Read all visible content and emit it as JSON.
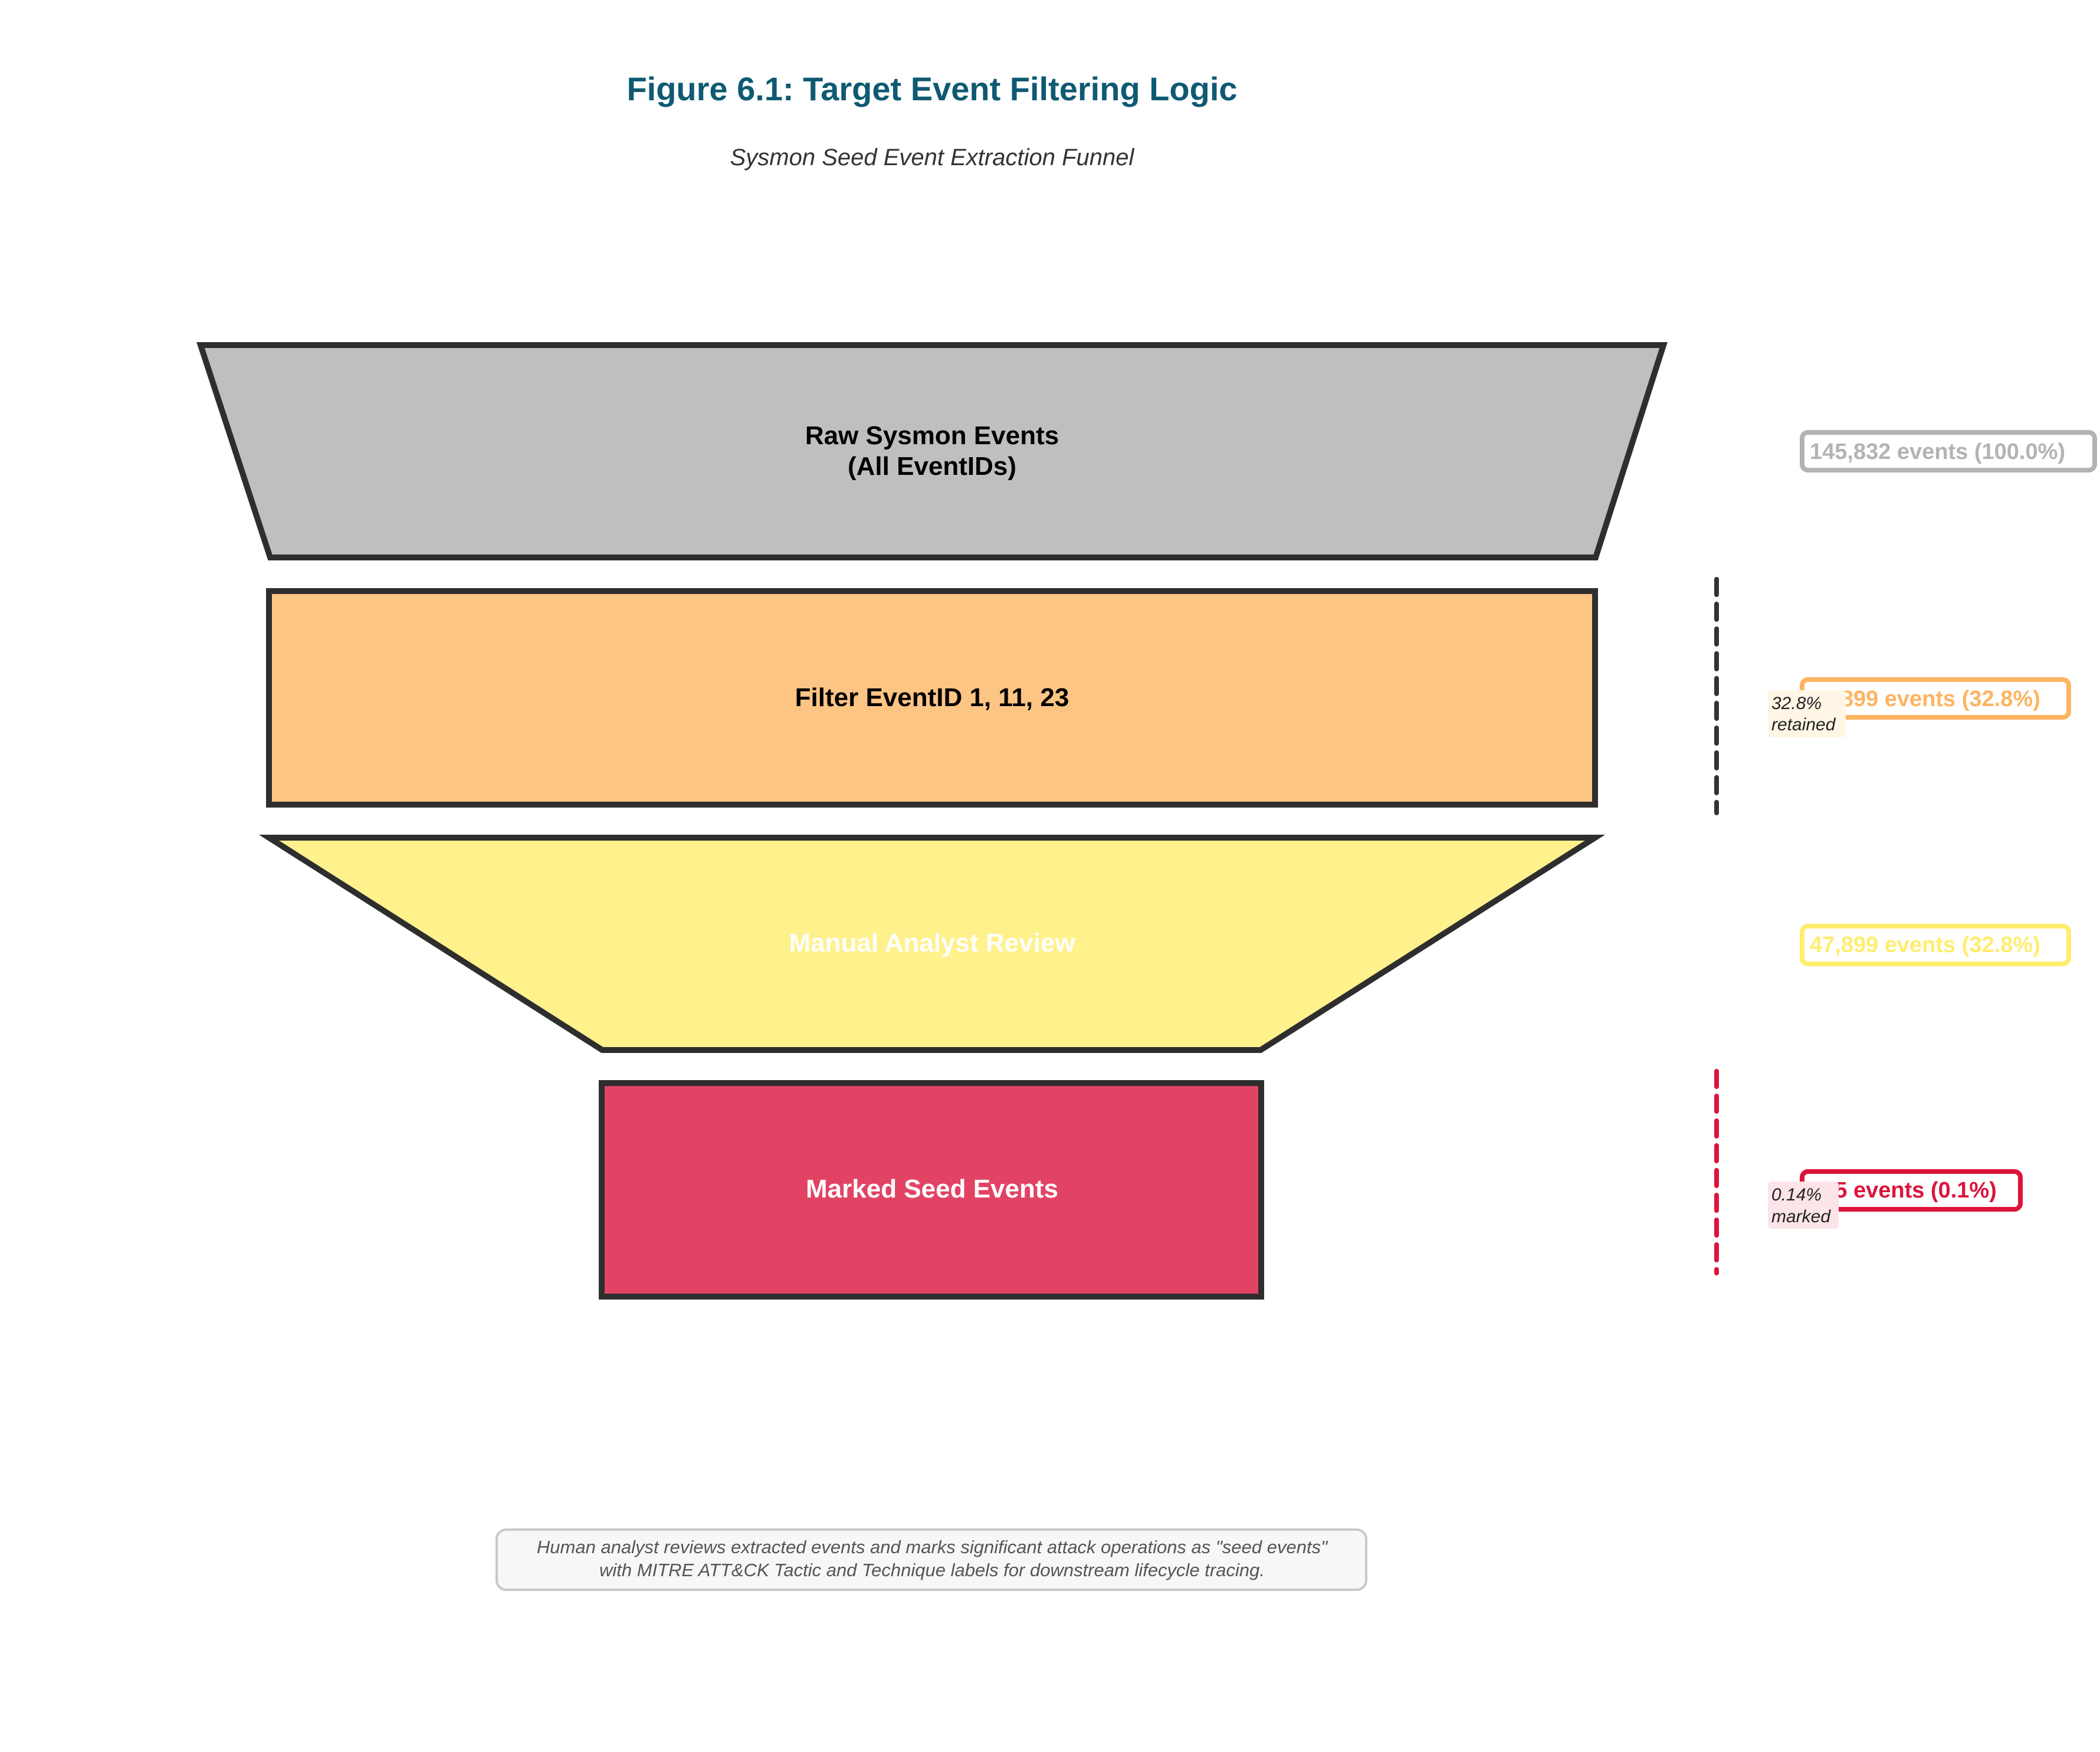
{
  "figure": {
    "title": "Figure 6.1: Target Event Filtering Logic",
    "subtitle": "Sysmon Seed Event Extraction Funnel"
  },
  "stages": [
    {
      "id": "raw",
      "label_line1": "Raw Sysmon Events",
      "label_line2": "(All EventIDs)",
      "count_text": "145,832 events (100.0%)",
      "fill": "#bfbfbf",
      "accent": "#b3b3b3",
      "text_color": "#000000"
    },
    {
      "id": "filter",
      "label_line1": "Filter EventID 1, 11, 23",
      "label_line2": "",
      "count_text": "47,899 events (32.8%)",
      "fill": "#fdc584",
      "accent": "#fdb462",
      "text_color": "#000000"
    },
    {
      "id": "review",
      "label_line1": "Manual Analyst Review",
      "label_line2": "",
      "count_text": "47,899 events (32.8%)",
      "fill": "#fff18c",
      "accent": "#ffed6f",
      "text_color": "#ffffff"
    },
    {
      "id": "seed",
      "label_line1": "Marked Seed Events",
      "label_line2": "",
      "count_text": "205 events (0.1%)",
      "fill": "#e24364",
      "accent": "#dc143c",
      "text_color": "#ffffff"
    }
  ],
  "annotations": [
    {
      "line1": "32.8%",
      "line2": "retained",
      "color": "#333333",
      "bg": "#fff6e6"
    },
    {
      "line1": "0.14%",
      "line2": "marked",
      "color": "#dc143c",
      "bg": "#fce4e8"
    }
  ],
  "note": {
    "line1": "Human analyst reviews extracted events and marks significant attack operations as \"seed events\"",
    "line2": "with MITRE ATT&CK Tactic and Technique labels for downstream lifecycle tracing."
  }
}
